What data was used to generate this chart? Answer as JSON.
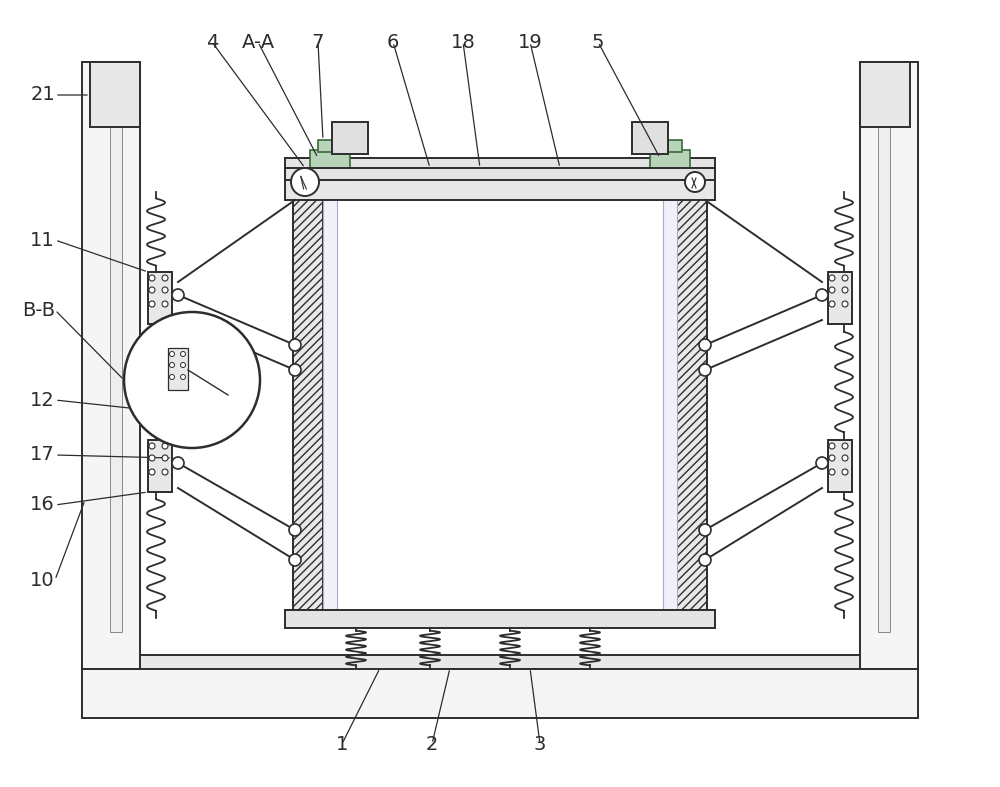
{
  "bg": "#ffffff",
  "lc": "#2d2d2d",
  "gray1": "#f0f0f0",
  "gray2": "#e0e0e0",
  "gray3": "#d0d0d0",
  "gray4": "#c0c0c0",
  "green1": "#b8d4b8",
  "green2": "#90b890",
  "green_edge": "#3a6a3a",
  "lw_main": 1.4,
  "lw_thin": 0.8,
  "lw_spring": 1.2,
  "fs": 14,
  "fig_w": 10.0,
  "fig_h": 7.87
}
